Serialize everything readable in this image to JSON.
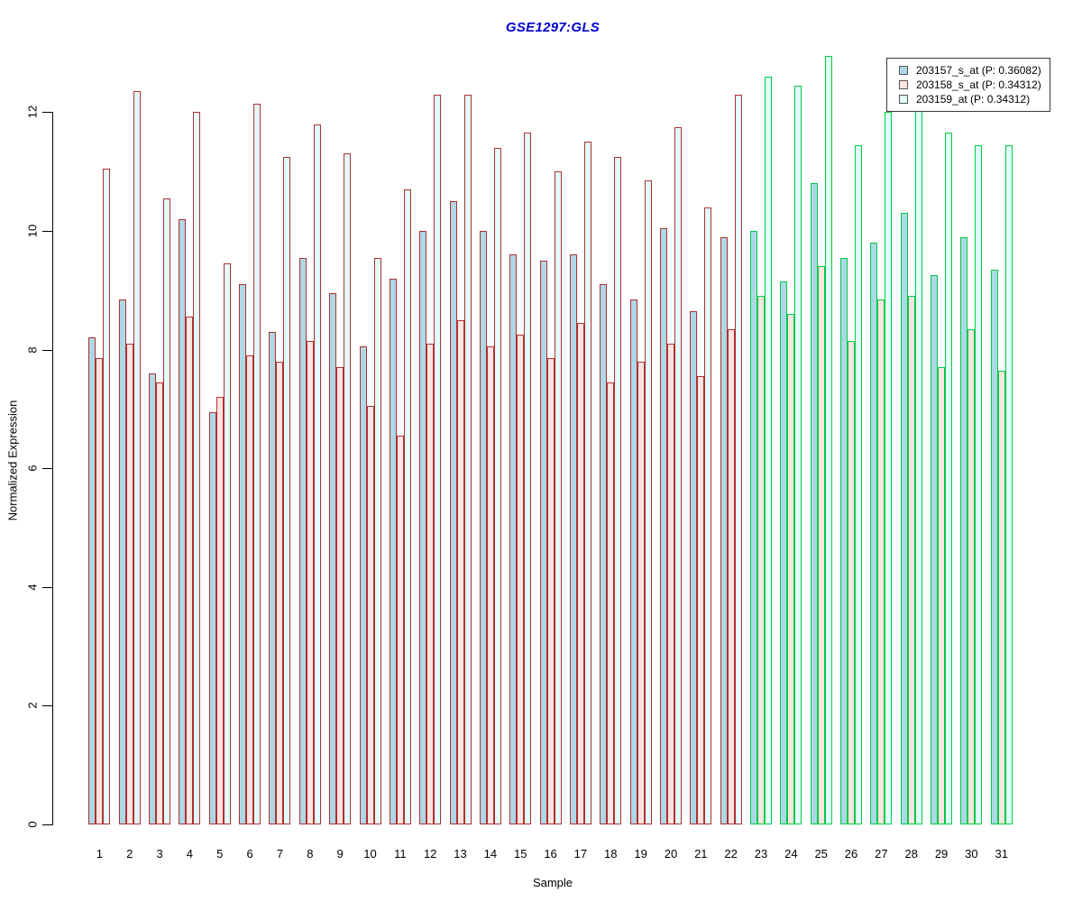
{
  "title": {
    "text": "GSE1297:GLS",
    "color": "#0000CD"
  },
  "x_axis": {
    "label": "Sample"
  },
  "y_axis": {
    "label": "Normalized Expression",
    "ticks": [
      "0",
      "2",
      "4",
      "6",
      "8",
      "10",
      "12"
    ]
  },
  "legend": {
    "position": "top-right",
    "items": [
      {
        "label": "203157_s_at (P: 0.36082)",
        "fill": "#ADD8E6"
      },
      {
        "label": "203158_s_at (P: 0.34312)",
        "fill": "#FFE4E1"
      },
      {
        "label": "203159_at (P: 0.34312)",
        "fill": "#E1FFFB"
      }
    ]
  },
  "colors": {
    "title_blue": "#0000CD",
    "outline_red": "#B03030",
    "outline_green": "#00CC44",
    "fill_blue": "#ADD8E6",
    "fill_pink": "#FFE4E1",
    "fill_cyan": "#E1FFFB"
  },
  "chart_data": {
    "type": "bar",
    "title": "GSE1297:GLS",
    "xlabel": "Sample",
    "ylabel": "Normalized Expression",
    "ylim": [
      0,
      13.2
    ],
    "y_ticks": [
      0,
      2,
      4,
      6,
      8,
      10,
      12
    ],
    "grid": false,
    "legend_position": "top-right",
    "categories": [
      "1",
      "2",
      "3",
      "4",
      "5",
      "6",
      "7",
      "8",
      "9",
      "10",
      "11",
      "12",
      "13",
      "14",
      "15",
      "16",
      "17",
      "18",
      "19",
      "20",
      "21",
      "22",
      "23",
      "24",
      "25",
      "26",
      "27",
      "28",
      "29",
      "30",
      "31"
    ],
    "series": [
      {
        "name": "203157_s_at (P: 0.36082)",
        "fill": "#ADD8E6",
        "values": [
          8.2,
          8.85,
          7.6,
          10.2,
          6.95,
          9.1,
          8.3,
          9.55,
          8.95,
          8.05,
          9.2,
          10.0,
          10.5,
          10.0,
          9.6,
          9.5,
          9.6,
          9.1,
          8.85,
          10.05,
          8.65,
          9.9,
          10.0,
          9.15,
          10.8,
          9.55,
          9.8,
          10.3,
          9.25,
          9.9,
          9.35
        ]
      },
      {
        "name": "203158_s_at (P: 0.34312)",
        "fill": "#FFE4E1",
        "values": [
          7.85,
          8.1,
          7.45,
          8.55,
          7.2,
          7.9,
          7.8,
          8.15,
          7.7,
          7.05,
          6.55,
          8.1,
          8.5,
          8.05,
          8.25,
          7.85,
          8.45,
          7.45,
          7.8,
          8.1,
          7.55,
          8.35,
          8.9,
          8.6,
          9.4,
          8.15,
          8.85,
          8.9,
          7.7,
          8.35,
          7.65
        ]
      },
      {
        "name": "203159_at (P: 0.34312)",
        "fill": "#E1FFFB",
        "values": [
          11.05,
          12.35,
          10.55,
          12.0,
          9.45,
          12.15,
          11.25,
          11.8,
          11.3,
          9.55,
          10.7,
          12.3,
          12.3,
          11.4,
          11.65,
          11.0,
          11.5,
          11.25,
          10.85,
          11.75,
          10.4,
          12.3,
          12.6,
          12.45,
          12.95,
          11.45,
          12.0,
          12.05,
          11.65,
          11.45,
          11.45
        ]
      }
    ],
    "outline_groups": [
      {
        "samples": "1-22",
        "outline": "#B03030"
      },
      {
        "samples": "23-31",
        "outline": "#00CC44"
      }
    ]
  }
}
